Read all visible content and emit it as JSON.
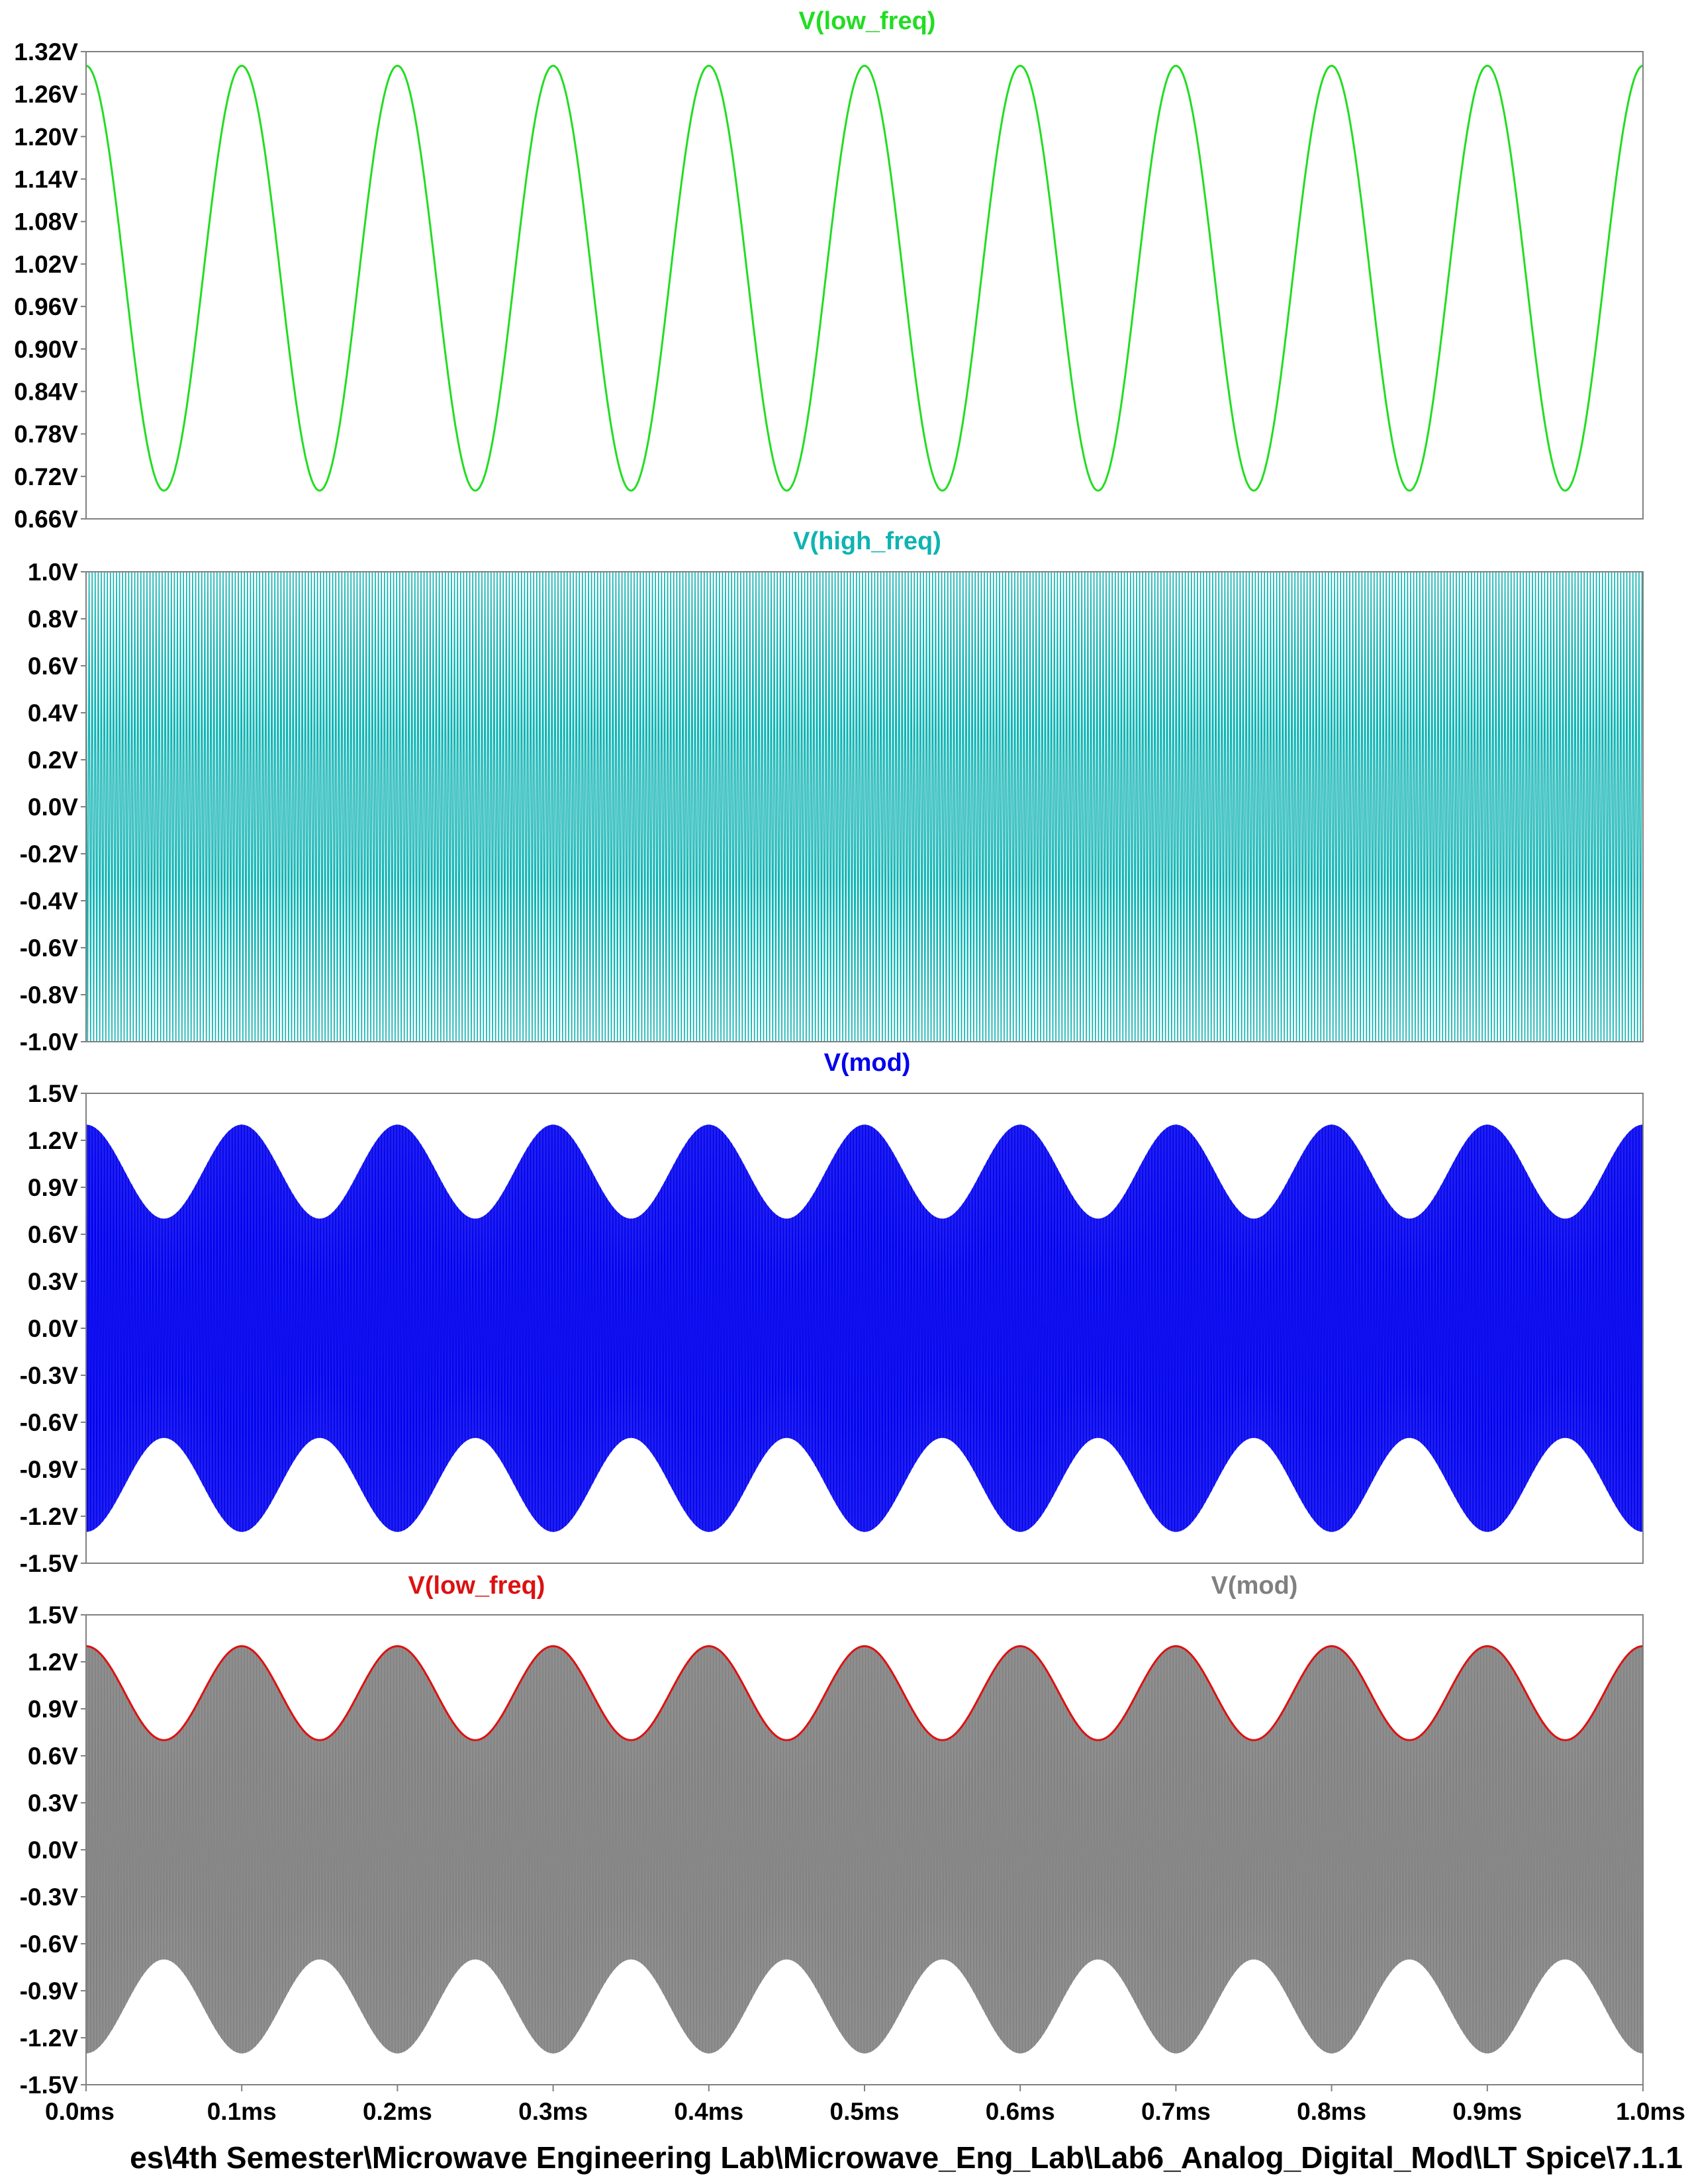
{
  "footer_path": "es\\4th Semester\\Microwave Engineering Lab\\Microwave_Eng_Lab\\Lab6_Analog_Digital_Mod\\LT Spice\\7.1.1",
  "colors": {
    "low_freq": "#22dd22",
    "high_freq": "#0fb3b3",
    "mod": "#0000ee",
    "overlay_low_freq": "#dd1111",
    "overlay_mod": "#808080"
  },
  "chart_data": [
    {
      "type": "line",
      "title": "V(low_freq)",
      "x_unit": "ms",
      "xlim": [
        0.0,
        1.0
      ],
      "ylim": [
        0.66,
        1.32
      ],
      "y_ticks": [
        "1.32V",
        "1.26V",
        "1.20V",
        "1.14V",
        "1.08V",
        "1.02V",
        "0.96V",
        "0.90V",
        "0.84V",
        "0.78V",
        "0.72V",
        "0.66V"
      ],
      "series": [
        {
          "name": "V(low_freq)",
          "signal": "sine",
          "offset": 1.0,
          "amplitude": 0.3,
          "frequency_khz": 10,
          "phase": "cosine",
          "color_key": "low_freq"
        }
      ]
    },
    {
      "type": "line",
      "title": "V(high_freq)",
      "x_unit": "ms",
      "xlim": [
        0.0,
        1.0
      ],
      "ylim": [
        -1.0,
        1.0
      ],
      "y_ticks": [
        "1.0V",
        "0.8V",
        "0.6V",
        "0.4V",
        "0.2V",
        "0.0V",
        "-0.2V",
        "-0.4V",
        "-0.6V",
        "-0.8V",
        "-1.0V"
      ],
      "series": [
        {
          "name": "V(high_freq)",
          "signal": "carrier",
          "offset": 0.0,
          "amplitude": 1.0,
          "color_key": "high_freq"
        }
      ]
    },
    {
      "type": "line",
      "title": "V(mod)",
      "x_unit": "ms",
      "xlim": [
        0.0,
        1.0
      ],
      "ylim": [
        -1.5,
        1.5
      ],
      "y_ticks": [
        "1.5V",
        "1.2V",
        "0.9V",
        "0.6V",
        "0.3V",
        "0.0V",
        "-0.3V",
        "-0.6V",
        "-0.9V",
        "-1.2V",
        "-1.5V"
      ],
      "series": [
        {
          "name": "V(mod)",
          "signal": "am",
          "envelope_max": 1.3,
          "envelope_min": 0.7,
          "frequency_khz": 10,
          "color_key": "mod"
        }
      ]
    },
    {
      "type": "line",
      "title_left": "V(low_freq)",
      "title_right": "V(mod)",
      "x_unit": "ms",
      "xlim": [
        0.0,
        1.0
      ],
      "ylim": [
        -1.5,
        1.5
      ],
      "y_ticks": [
        "1.5V",
        "1.2V",
        "0.9V",
        "0.6V",
        "0.3V",
        "0.0V",
        "-0.3V",
        "-0.6V",
        "-0.9V",
        "-1.2V",
        "-1.5V"
      ],
      "x_ticks": [
        "0.0ms",
        "0.1ms",
        "0.2ms",
        "0.3ms",
        "0.4ms",
        "0.5ms",
        "0.6ms",
        "0.7ms",
        "0.8ms",
        "0.9ms",
        "1.0ms"
      ],
      "series": [
        {
          "name": "V(mod)",
          "signal": "am",
          "envelope_max": 1.3,
          "envelope_min": 0.7,
          "frequency_khz": 10,
          "color_key": "overlay_mod"
        },
        {
          "name": "V(low_freq)",
          "signal": "sine",
          "offset": 1.0,
          "amplitude": 0.3,
          "frequency_khz": 10,
          "phase": "cosine",
          "color_key": "overlay_low_freq"
        }
      ]
    }
  ]
}
